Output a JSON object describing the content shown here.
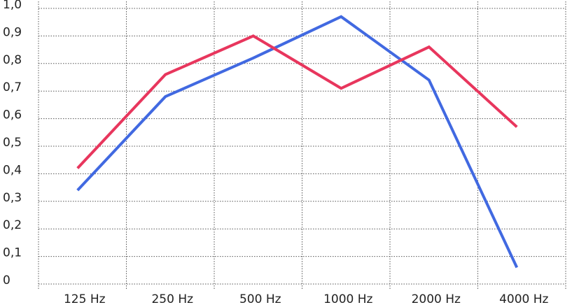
{
  "chart_data": {
    "type": "line",
    "categories": [
      "125 Hz",
      "250 Hz",
      "500 Hz",
      "1000 Hz",
      "2000 Hz",
      "4000 Hz"
    ],
    "series": [
      {
        "color": "#4169e1",
        "values": [
          0.34,
          0.68,
          0.82,
          0.97,
          0.74,
          0.06
        ]
      },
      {
        "color": "#e8365d",
        "values": [
          0.42,
          0.76,
          0.9,
          0.71,
          0.86,
          0.57
        ]
      }
    ],
    "ylim": [
      0,
      1.0
    ],
    "yticks": [
      0,
      {
        "value": 0.1,
        "label": "0,1"
      },
      {
        "value": 0.2,
        "label": "0,2"
      },
      {
        "value": 0.3,
        "label": "0,3"
      },
      {
        "value": 0.4,
        "label": "0,4"
      },
      {
        "value": 0.5,
        "label": "0,5"
      },
      {
        "value": 0.6,
        "label": "0,6"
      },
      {
        "value": 0.7,
        "label": "0,7"
      },
      {
        "value": 0.8,
        "label": "0,8"
      },
      {
        "value": 0.9,
        "label": "0,9"
      },
      {
        "value": 1.0,
        "label": "1,0"
      }
    ],
    "grid": true
  }
}
